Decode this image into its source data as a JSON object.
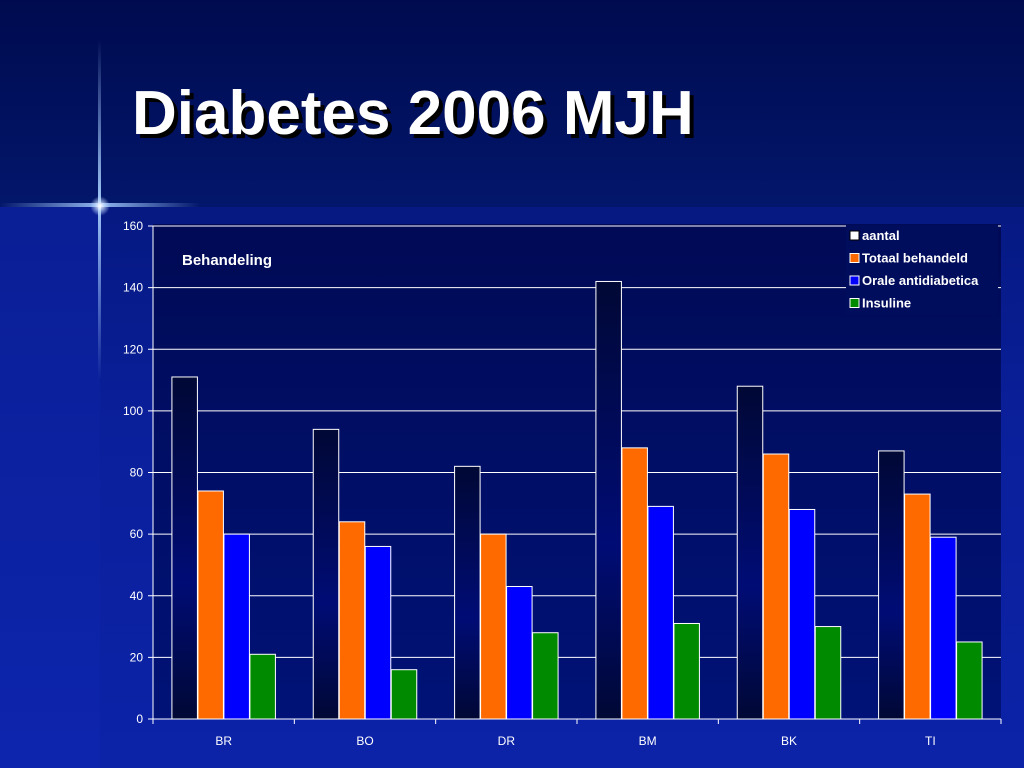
{
  "slide": {
    "title": "Diabetes 2006 MJH"
  },
  "chart_data": {
    "type": "bar",
    "title": "Behandeling",
    "xlabel": "",
    "ylabel": "",
    "categories": [
      "BR",
      "BO",
      "DR",
      "BM",
      "BK",
      "TI"
    ],
    "series": [
      {
        "name": "aantal",
        "values": [
          111,
          94,
          82,
          142,
          108,
          87
        ]
      },
      {
        "name": "Totaal behandeld",
        "values": [
          74,
          64,
          60,
          88,
          86,
          73
        ]
      },
      {
        "name": "Orale antidiabetica",
        "values": [
          60,
          56,
          43,
          69,
          68,
          59
        ]
      },
      {
        "name": "Insuline",
        "values": [
          21,
          16,
          28,
          31,
          30,
          25
        ]
      }
    ],
    "ylim": [
      0,
      160
    ],
    "yticks": [
      0,
      20,
      40,
      60,
      80,
      100,
      120,
      140,
      160
    ],
    "grid": true,
    "legend_position": "top-right",
    "colors": {
      "series": [
        "#000a4a",
        "#ff6a00",
        "#0000ff",
        "#008a00"
      ],
      "legend_swatches": [
        "#ffffff",
        "#ff6a00",
        "#0000ff",
        "#008a00"
      ],
      "grid": "#ffffff",
      "text": "#ffffff",
      "plot_background": "#000c5c"
    }
  }
}
